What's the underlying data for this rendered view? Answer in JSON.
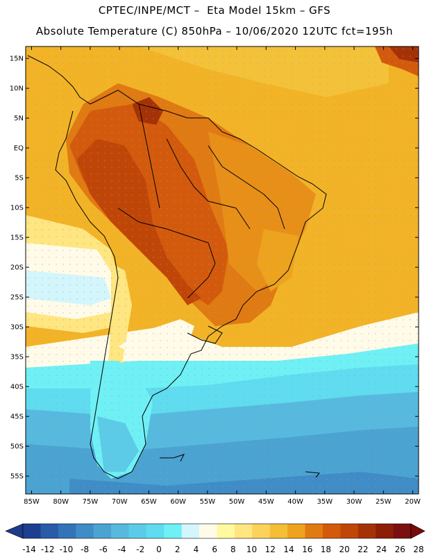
{
  "header": {
    "line1": "CPTEC/INPE/MCT –  Eta Model 15km – GFS",
    "line2": "Absolute Temperature (C) 850hPa – 10/06/2020 12UTC fct=195h"
  },
  "map": {
    "lon_labels": [
      "85W",
      "80W",
      "75W",
      "70W",
      "65W",
      "60W",
      "55W",
      "50W",
      "45W",
      "40W",
      "35W",
      "30W",
      "25W",
      "20W"
    ],
    "lat_labels": [
      "15N",
      "10N",
      "5N",
      "EQ",
      "5S",
      "10S",
      "15S",
      "20S",
      "25S",
      "30S",
      "35S",
      "40S",
      "45S",
      "50S",
      "55S"
    ],
    "lon_range": [
      -86,
      -19
    ],
    "lat_range": [
      -58,
      17
    ]
  },
  "colorbar": {
    "labels": [
      "-14",
      "-12",
      "-10",
      "-8",
      "-6",
      "-4",
      "-2",
      "0",
      "2",
      "4",
      "6",
      "8",
      "10",
      "12",
      "14",
      "16",
      "18",
      "20",
      "22",
      "24",
      "26",
      "28"
    ],
    "colors": [
      "#1d3f8f",
      "#2a5aa8",
      "#3373b7",
      "#3f8cc6",
      "#4ba3d2",
      "#57b9de",
      "#5ccbe8",
      "#5fdcef",
      "#6ff0f5",
      "#d2f6fb",
      "#fffbe8",
      "#fffaa0",
      "#ffe680",
      "#fbd35a",
      "#f4bf36",
      "#eda31d",
      "#e07a12",
      "#d35a0c",
      "#c04608",
      "#a53206",
      "#8c1f06",
      "#7a1010"
    ],
    "end_colors": {
      "left": "#1e3a8a",
      "right": "#7a0a0a"
    }
  }
}
